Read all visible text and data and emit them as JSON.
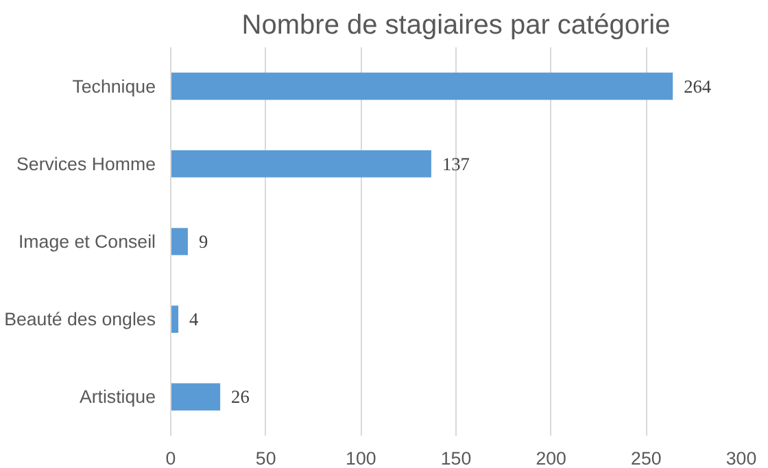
{
  "chart_data": {
    "type": "bar",
    "orientation": "horizontal",
    "title": "Nombre de stagiaires par catégorie",
    "categories": [
      "Technique",
      "Services Homme",
      "Image et Conseil",
      "Beauté des ongles",
      "Artistique"
    ],
    "values": [
      264,
      137,
      9,
      4,
      26
    ],
    "color": "#5b9bd5",
    "xlim": [
      0,
      300
    ],
    "xticks": [
      0,
      50,
      100,
      150,
      200,
      250,
      300
    ],
    "grid": "x",
    "data_labels": true
  }
}
